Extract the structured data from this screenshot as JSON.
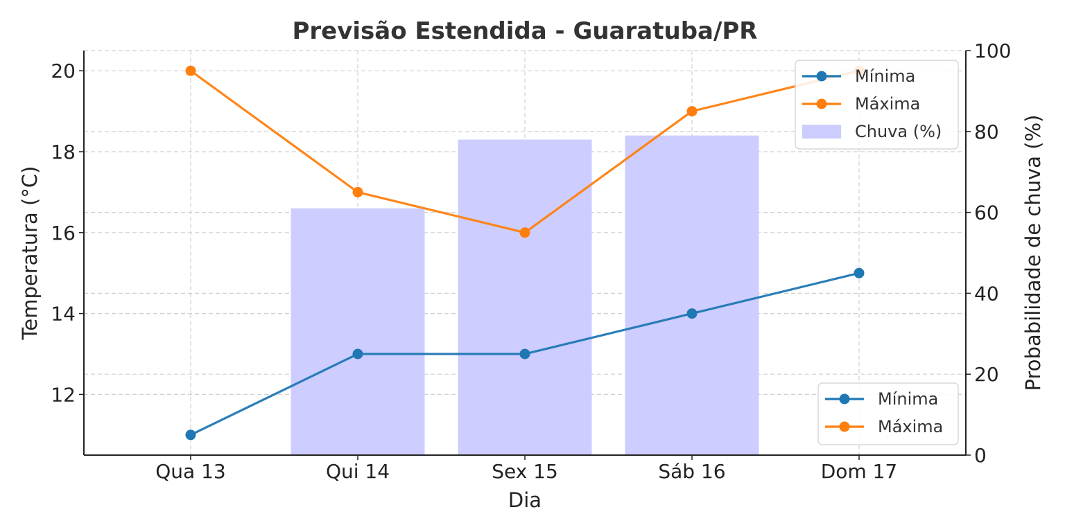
{
  "chart_data": {
    "type": "line",
    "title": "Previsão Estendida - Guaratuba/PR",
    "xlabel": "Dia",
    "ylabel": "Temperatura (°C)",
    "ylabel_right": "Probabilidade de chuva (%)",
    "categories": [
      "Qua 13",
      "Qui 14",
      "Sex 15",
      "Sáb 16",
      "Dom 17"
    ],
    "series": [
      {
        "name": "Mínima",
        "type": "line",
        "axis": "left",
        "color": "#1f77b4",
        "values": [
          11,
          13,
          13,
          14,
          15
        ]
      },
      {
        "name": "Máxima",
        "type": "line",
        "axis": "left",
        "color": "#ff7f0e",
        "values": [
          20,
          17,
          16,
          19,
          20
        ]
      },
      {
        "name": "Chuva (%)",
        "type": "bar",
        "axis": "right",
        "color": "#ccccff",
        "values": [
          0,
          61,
          78,
          79,
          0
        ]
      }
    ],
    "ylim": [
      10.5,
      20.5
    ],
    "ylim_right": [
      0,
      100
    ],
    "yticks": [
      12,
      14,
      16,
      18,
      20
    ],
    "yticks_right": [
      0,
      20,
      40,
      60,
      80,
      100
    ],
    "grid": true,
    "legends": [
      {
        "placement": "top-right",
        "entries": [
          "Mínima",
          "Máxima",
          "Chuva (%)"
        ]
      },
      {
        "placement": "bottom-right",
        "entries": [
          "Mínima",
          "Máxima"
        ]
      }
    ]
  }
}
